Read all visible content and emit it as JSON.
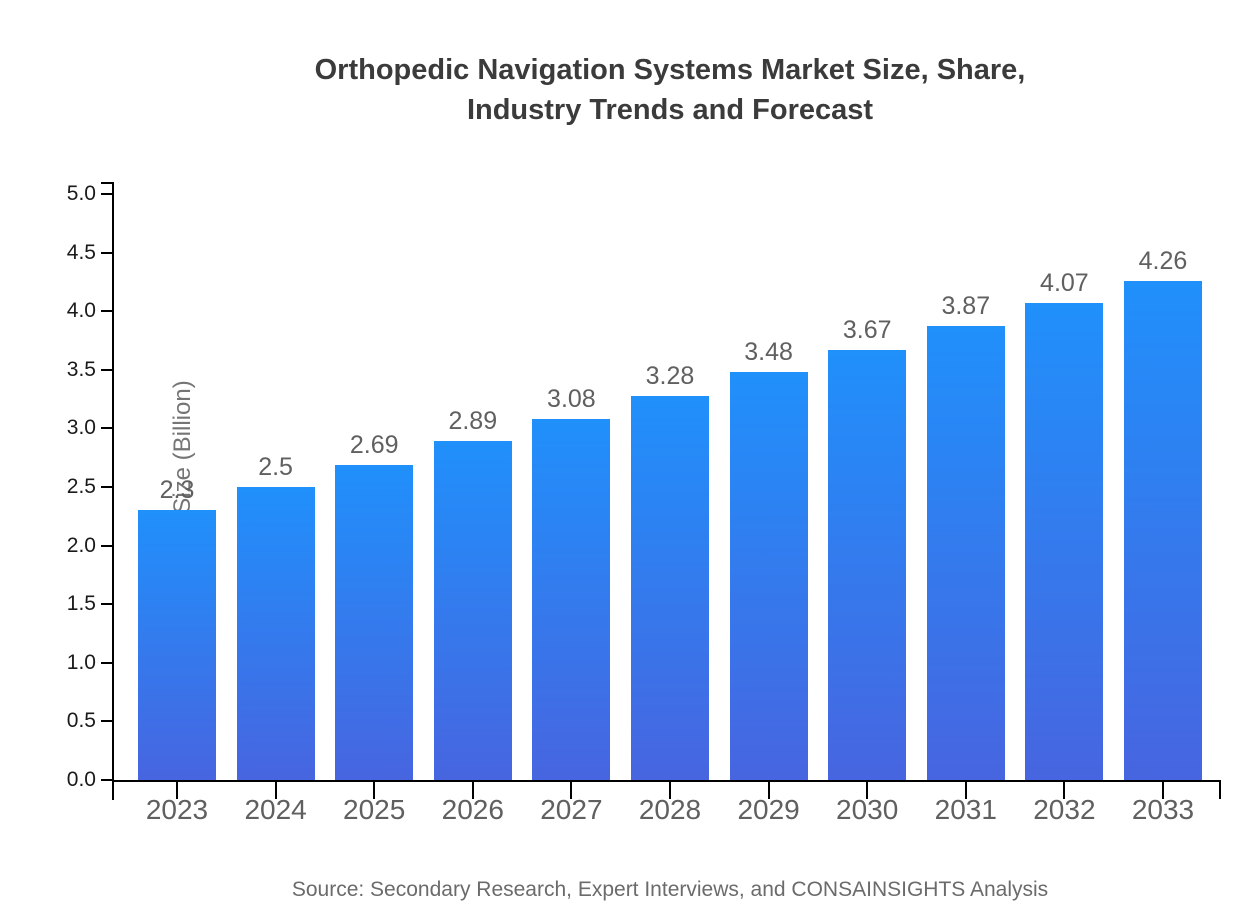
{
  "page": {
    "background": "#ffffff"
  },
  "header": {
    "title_lines": [
      "Orthopedic Navigation Systems Market Size, Share,",
      "Industry Trends and Forecast"
    ]
  },
  "footer": {
    "source_text": "Source: Secondary Research, Expert Interviews, and CONSAINSIGHTS Analysis"
  },
  "chart_data": {
    "type": "bar",
    "title": "Orthopedic Navigation Systems Market Size, Share, Industry Trends and Forecast",
    "categories": [
      "2023",
      "2024",
      "2025",
      "2026",
      "2027",
      "2028",
      "2029",
      "2030",
      "2031",
      "2032",
      "2033"
    ],
    "values": [
      2.3,
      2.5,
      2.69,
      2.89,
      3.08,
      3.28,
      3.48,
      3.67,
      3.87,
      4.07,
      4.26
    ],
    "data_labels": [
      "2.3",
      "2.5",
      "2.69",
      "2.89",
      "3.08",
      "3.28",
      "3.48",
      "3.67",
      "3.87",
      "4.07",
      "4.26"
    ],
    "xlabel": "",
    "ylabel": "Market Size (Billion)",
    "ylim": [
      0,
      5
    ],
    "ytick_step": 0.5,
    "ytick_labels": [
      "0.0",
      "0.5",
      "1.0",
      "1.5",
      "2.0",
      "2.5",
      "3.0",
      "3.5",
      "4.0",
      "4.5",
      "5.0"
    ],
    "grid": false,
    "legend": false,
    "bar_color_top": "#2090fb",
    "bar_color_bottom": "#4765e0",
    "axis_color": "#000000",
    "label_color": "#606060",
    "ytick_color": "#1a1a1a"
  }
}
